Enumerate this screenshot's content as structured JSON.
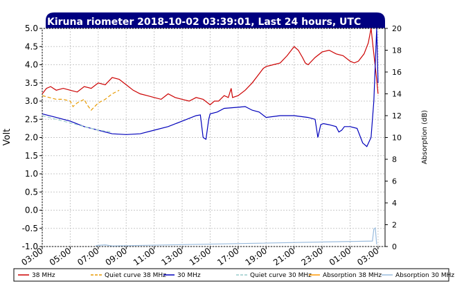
{
  "chart_data": {
    "type": "line",
    "title": "Kiruna riometer 2018-10-02 03:39:01, Last 24 hours, UTC",
    "ylabel": "Volt",
    "y2label": "Absorption (dB)",
    "xlim": [
      0,
      24.5
    ],
    "ylim": [
      -1.0,
      5.0
    ],
    "y2lim": [
      0,
      20
    ],
    "grid": true,
    "legend_position": "bottom",
    "x_ticks": [
      {
        "x": 0,
        "label": "03:00"
      },
      {
        "x": 2,
        "label": "05:00"
      },
      {
        "x": 4,
        "label": "07:00"
      },
      {
        "x": 6,
        "label": "09:00"
      },
      {
        "x": 8,
        "label": "11:00"
      },
      {
        "x": 10,
        "label": "13:00"
      },
      {
        "x": 12,
        "label": "15:00"
      },
      {
        "x": 14,
        "label": "17:00"
      },
      {
        "x": 16,
        "label": "19:00"
      },
      {
        "x": 18,
        "label": "21:00"
      },
      {
        "x": 20,
        "label": "23:00"
      },
      {
        "x": 22,
        "label": "01:00"
      },
      {
        "x": 24,
        "label": "03:00"
      }
    ],
    "y_ticks": [
      {
        "v": 5.0,
        "label": "5.0"
      },
      {
        "v": 4.5,
        "label": "4.5"
      },
      {
        "v": 4.0,
        "label": "4.0"
      },
      {
        "v": 3.5,
        "label": "3.5"
      },
      {
        "v": 3.0,
        "label": "3.0"
      },
      {
        "v": 2.5,
        "label": "2.5"
      },
      {
        "v": 2.0,
        "label": "2.0"
      },
      {
        "v": 1.5,
        "label": "1.5"
      },
      {
        "v": 1.0,
        "label": "1.0"
      },
      {
        "v": 0.5,
        "label": "0.5"
      },
      {
        "v": 0.0,
        "label": "0.0"
      },
      {
        "v": -0.5,
        "label": "-0.5"
      },
      {
        "v": -1.0,
        "label": "-1.0"
      }
    ],
    "y2_ticks": [
      {
        "v": 20,
        "label": "20"
      },
      {
        "v": 18,
        "label": "18"
      },
      {
        "v": 16,
        "label": "16"
      },
      {
        "v": 14,
        "label": "14"
      },
      {
        "v": 12,
        "label": "12"
      },
      {
        "v": 10,
        "label": "10"
      },
      {
        "v": 8,
        "label": "8"
      },
      {
        "v": 6,
        "label": "6"
      },
      {
        "v": 4,
        "label": "4"
      },
      {
        "v": 2,
        "label": "2"
      },
      {
        "v": 0,
        "label": "0"
      }
    ],
    "series": [
      {
        "name": "38 MHz",
        "color": "#cc0000",
        "dash": "solid",
        "axis": "left",
        "x": [
          0,
          0.3,
          0.6,
          1.0,
          1.5,
          2.0,
          2.5,
          3.0,
          3.5,
          4.0,
          4.5,
          5.0,
          5.5,
          6.0,
          6.5,
          7.0,
          7.5,
          8.0,
          8.5,
          9.0,
          9.5,
          10.0,
          10.5,
          11.0,
          11.5,
          12.0,
          12.3,
          12.6,
          13.0,
          13.3,
          13.5,
          13.6,
          14.0,
          14.5,
          15.0,
          15.5,
          15.8,
          16.0,
          16.5,
          17.0,
          17.5,
          18.0,
          18.3,
          18.6,
          18.8,
          19.0,
          19.5,
          20.0,
          20.5,
          21.0,
          21.5,
          22.0,
          22.3,
          22.6,
          23.0,
          23.3,
          23.5,
          23.7,
          23.9,
          24.0
        ],
        "y": [
          3.2,
          3.35,
          3.4,
          3.3,
          3.35,
          3.3,
          3.25,
          3.4,
          3.35,
          3.5,
          3.45,
          3.65,
          3.6,
          3.45,
          3.3,
          3.2,
          3.15,
          3.1,
          3.05,
          3.2,
          3.1,
          3.05,
          3.0,
          3.1,
          3.05,
          2.9,
          3.0,
          3.0,
          3.15,
          3.1,
          3.35,
          3.1,
          3.15,
          3.3,
          3.5,
          3.75,
          3.9,
          3.95,
          4.0,
          4.05,
          4.25,
          4.5,
          4.4,
          4.2,
          4.05,
          4.0,
          4.2,
          4.35,
          4.4,
          4.3,
          4.25,
          4.1,
          4.05,
          4.1,
          4.3,
          4.6,
          5.0,
          4.3,
          3.6,
          3.2
        ]
      },
      {
        "name": "Quiet curve 38 MHz",
        "color": "#e89a00",
        "dash": "dashed",
        "axis": "left",
        "x": [
          0,
          0.5,
          1.0,
          1.5,
          2.0,
          2.2,
          2.5,
          3.0,
          3.2,
          3.5,
          4.0,
          4.5,
          5.0,
          5.5
        ],
        "y": [
          3.15,
          3.1,
          3.05,
          3.05,
          3.0,
          2.85,
          2.95,
          3.05,
          2.9,
          2.75,
          2.95,
          3.05,
          3.2,
          3.3
        ]
      },
      {
        "name": "30 MHz",
        "color": "#0000bb",
        "dash": "solid",
        "axis": "left",
        "x": [
          0,
          1.0,
          2.0,
          3.0,
          4.0,
          5.0,
          6.0,
          7.0,
          8.0,
          9.0,
          10.0,
          11.0,
          11.3,
          11.5,
          11.7,
          11.9,
          12.0,
          12.5,
          13.0,
          14.0,
          14.5,
          15.0,
          15.5,
          16.0,
          17.0,
          18.0,
          19.0,
          19.5,
          19.7,
          19.9,
          20.1,
          20.5,
          21.0,
          21.2,
          21.4,
          21.6,
          22.0,
          22.5,
          22.9,
          23.2,
          23.5,
          23.7,
          23.9,
          24.0
        ],
        "y": [
          2.65,
          2.55,
          2.45,
          2.3,
          2.2,
          2.1,
          2.08,
          2.1,
          2.2,
          2.3,
          2.45,
          2.6,
          2.62,
          2.0,
          1.95,
          2.5,
          2.65,
          2.7,
          2.8,
          2.83,
          2.85,
          2.75,
          2.7,
          2.55,
          2.6,
          2.6,
          2.55,
          2.5,
          2.0,
          2.35,
          2.38,
          2.35,
          2.3,
          2.15,
          2.2,
          2.3,
          2.3,
          2.25,
          1.85,
          1.75,
          2.0,
          3.0,
          5.0,
          3.5
        ]
      },
      {
        "name": "Quiet curve 30 MHz",
        "color": "#99cccc",
        "dash": "dashed",
        "axis": "left",
        "x": [
          0,
          1.0,
          2.0,
          3.0,
          4.0,
          5.0
        ],
        "y": [
          2.6,
          2.5,
          2.4,
          2.3,
          2.2,
          2.15
        ]
      },
      {
        "name": "Absorption 38 MHz",
        "color": "#ff9900",
        "dash": "solid",
        "axis": "right",
        "x": [],
        "y": []
      },
      {
        "name": "Absorption 30 MHz",
        "color": "#99bbdd",
        "dash": "solid",
        "axis": "right",
        "x": [
          3.8,
          4.0,
          4.5,
          5.0,
          23.6,
          23.7,
          23.8,
          23.9
        ],
        "y": [
          0.05,
          0.1,
          0.15,
          0.05,
          0.5,
          1.6,
          1.7,
          0.2
        ]
      }
    ],
    "legend": [
      {
        "name": "38 MHz",
        "color": "#cc0000",
        "dash": "solid"
      },
      {
        "name": "Quiet curve 38 MHz",
        "color": "#e89a00",
        "dash": "dashed"
      },
      {
        "name": "30 MHz",
        "color": "#0000bb",
        "dash": "solid"
      },
      {
        "name": "Quiet curve 30 MHz",
        "color": "#99cccc",
        "dash": "dashed"
      },
      {
        "name": "Absorption 38 MHz",
        "color": "#ff9900",
        "dash": "solid"
      },
      {
        "name": "Absorption 30 MHz",
        "color": "#99bbdd",
        "dash": "solid"
      }
    ]
  },
  "colors": {
    "title_bar": "#000080",
    "grid": "#c8c8c8",
    "background": "#ffffff"
  }
}
